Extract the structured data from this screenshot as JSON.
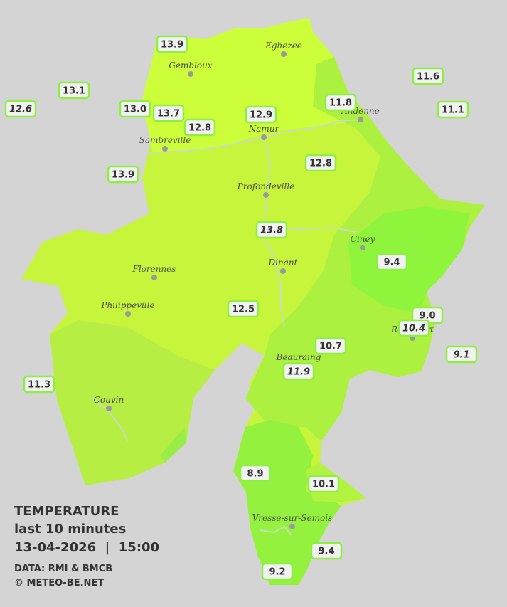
{
  "title": "TEMPERATURE",
  "subtitle": "last 10 minutes",
  "datetime": "13-04-2026  |  15:00",
  "source": "DATA: RMI & BMCB",
  "credit": "© METEO-BE.NET",
  "places": [
    "Eghezee",
    "Gembloux",
    "Andenne",
    "Namur",
    "Sambreville",
    "Profondeville",
    "Ciney",
    "Dinant",
    "Florennes",
    "Philippeville",
    "Couvin",
    "Vresse-sur-Semois",
    "Beauraing",
    "Rochefort"
  ],
  "readings": [
    "13.9",
    "13.1",
    "12.6",
    "13.0",
    "13.7",
    "12.8",
    "12.9",
    "11.8",
    "11.6",
    "11.1",
    "13.9",
    "12.8",
    "13.8",
    "9.4",
    "12.5",
    "9.0",
    "10.4",
    "9.1",
    "10.7",
    "11.9",
    "11.3",
    "8.9",
    "10.1",
    "9.4",
    "9.2"
  ]
}
